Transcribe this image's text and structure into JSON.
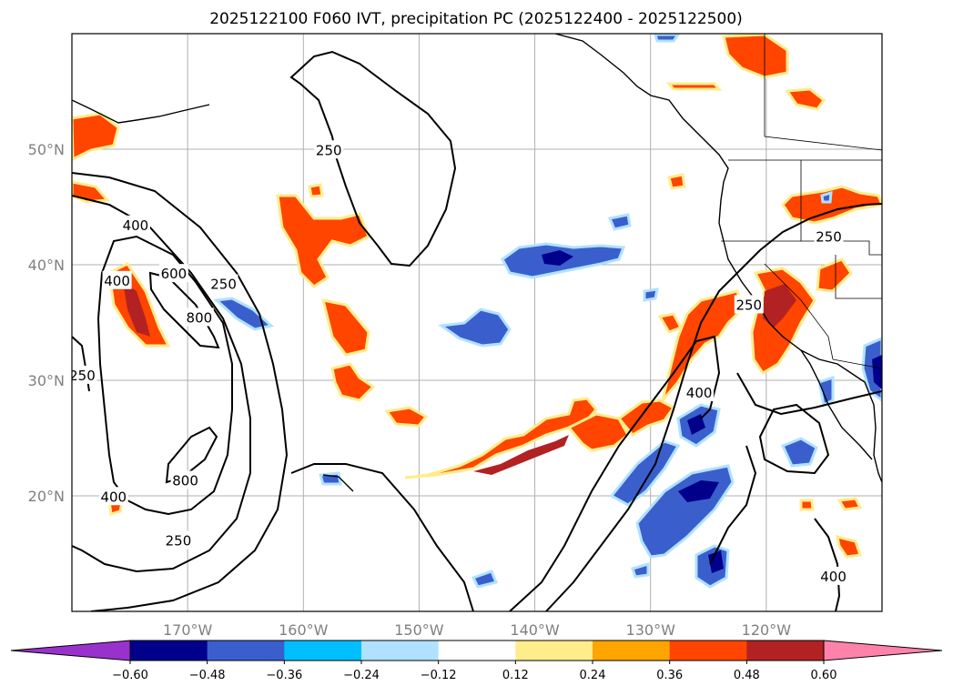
{
  "title": "2025122100 F060 IVT, precipitation PC (2025122400 - 2025122500)",
  "map": {
    "lat_labels": [
      "50°N",
      "40°N",
      "30°N",
      "20°N"
    ],
    "lat_values": [
      50,
      40,
      30,
      20
    ],
    "lon_labels": [
      "170°W",
      "160°W",
      "150°W",
      "140°W",
      "130°W",
      "120°W"
    ],
    "lon_values": [
      -170,
      -160,
      -150,
      -140,
      -130,
      -120
    ],
    "extent": {
      "lon_min": -180,
      "lon_max": -110,
      "lat_min": 10,
      "lat_max": 60
    },
    "ivt_contour_levels": [
      250,
      400,
      600,
      800
    ],
    "ivt_contour_labels": [
      {
        "text": "250",
        "lon": -157.8,
        "lat": 49.9
      },
      {
        "text": "400",
        "lon": -174.5,
        "lat": 43.4
      },
      {
        "text": "600",
        "lon": -171.2,
        "lat": 39.2
      },
      {
        "text": "400",
        "lon": -176.1,
        "lat": 38.6
      },
      {
        "text": "250",
        "lon": -166.9,
        "lat": 38.3
      },
      {
        "text": "800",
        "lon": -169.0,
        "lat": 35.4
      },
      {
        "text": "250",
        "lon": -179.1,
        "lat": 30.4
      },
      {
        "text": "800",
        "lon": -170.2,
        "lat": 21.3
      },
      {
        "text": "400",
        "lon": -176.4,
        "lat": 19.9
      },
      {
        "text": "250",
        "lon": -170.8,
        "lat": 16.1
      },
      {
        "text": "250",
        "lon": -121.5,
        "lat": 36.5
      },
      {
        "text": "400",
        "lon": -125.8,
        "lat": 28.9
      },
      {
        "text": "250",
        "lon": -114.6,
        "lat": 42.4
      },
      {
        "text": "400",
        "lon": -114.2,
        "lat": 13.0
      }
    ]
  },
  "colorbar": {
    "tick_labels": [
      "−0.60",
      "−0.48",
      "−0.36",
      "−0.24",
      "−0.12",
      "0.12",
      "0.24",
      "0.36",
      "0.48",
      "0.60"
    ],
    "colors": [
      "#9932cc",
      "#00008b",
      "#3a5fcd",
      "#00bfff",
      "#b0e2ff",
      "#ffffff",
      "#ffec8b",
      "#ffa500",
      "#ff4500",
      "#b22222",
      "#ff82ab"
    ]
  }
}
